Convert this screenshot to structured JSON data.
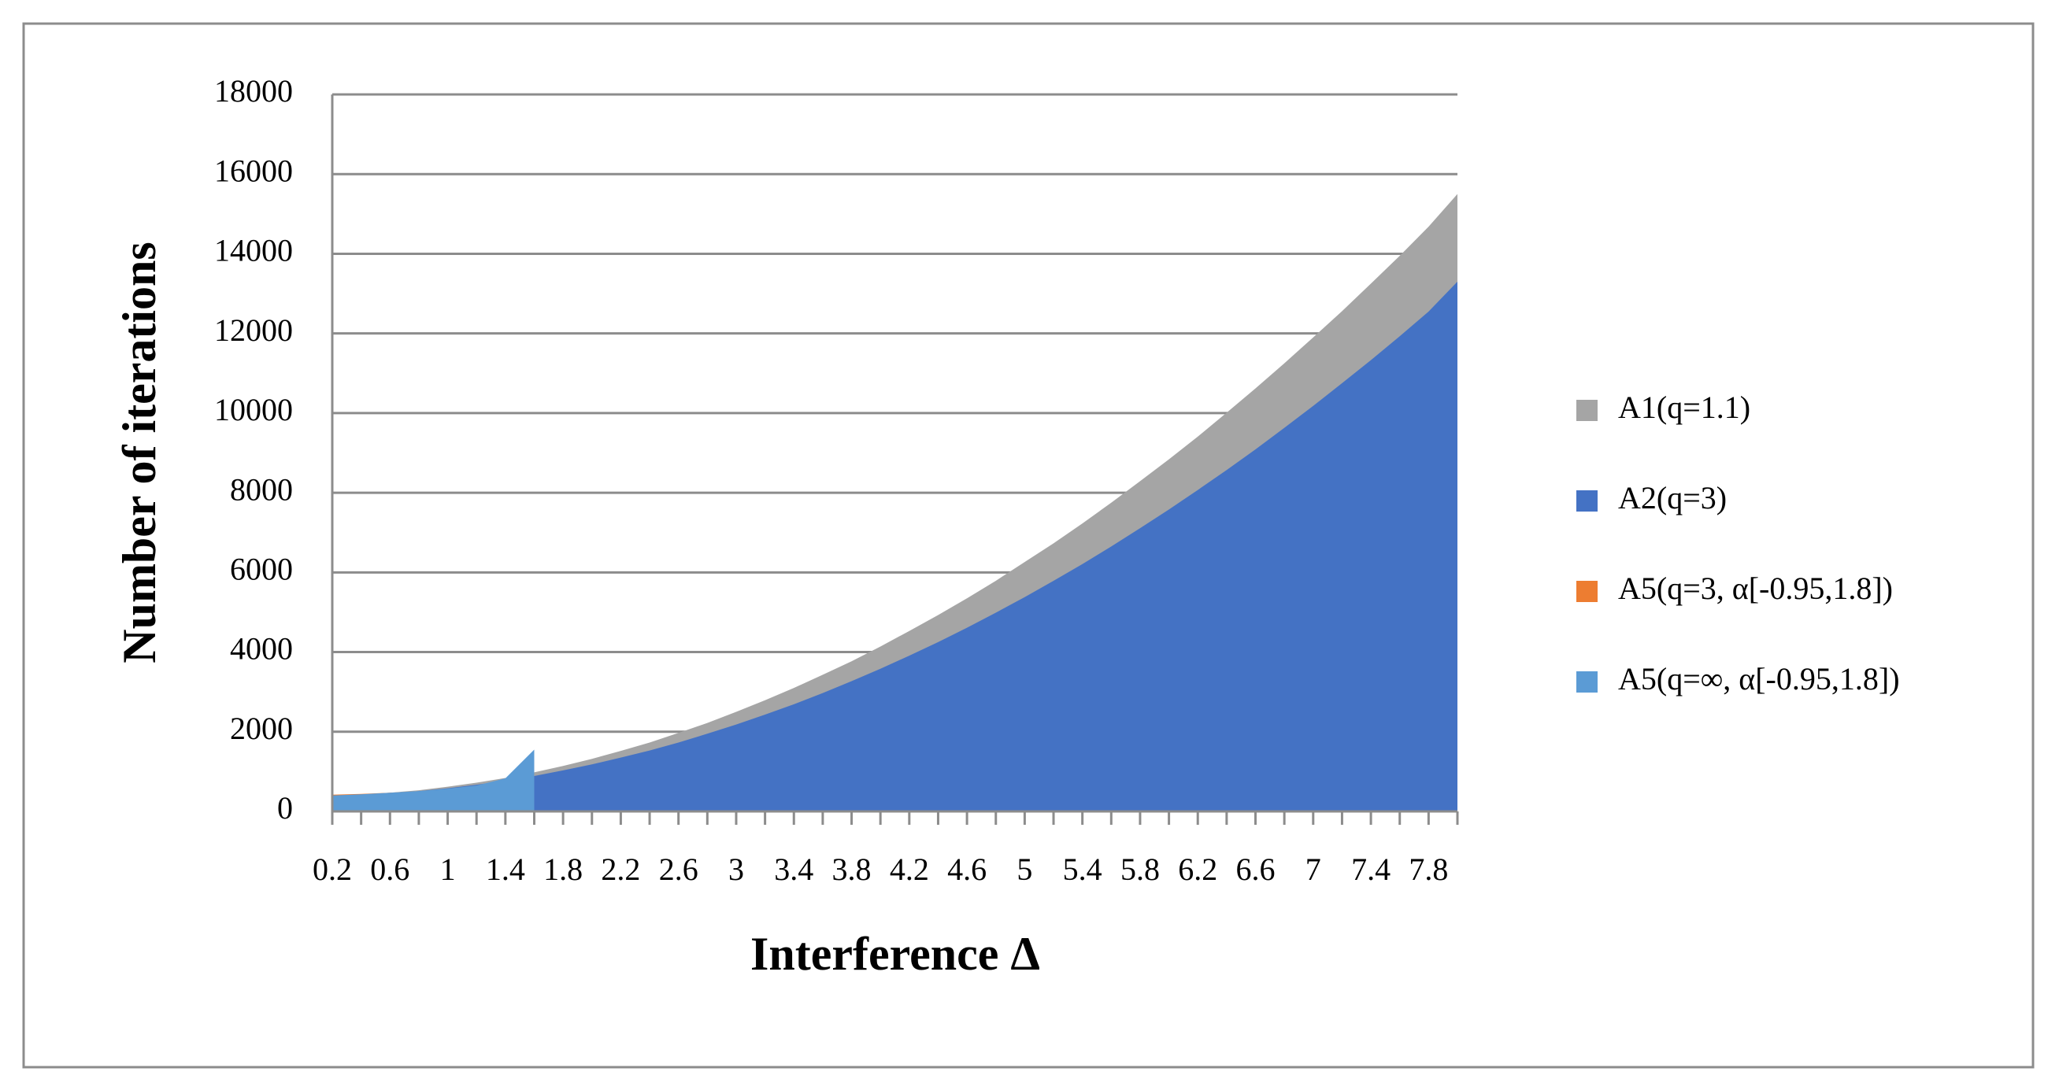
{
  "chart_data": {
    "type": "area",
    "y_axis_label": "Number of iterations",
    "x_axis_label": "Interference Δ",
    "categories": [
      0.2,
      null,
      0.6,
      null,
      1,
      null,
      1.4,
      null,
      1.8,
      null,
      2.2,
      null,
      2.6,
      null,
      3,
      null,
      3.4,
      null,
      3.8,
      null,
      4.2,
      null,
      4.6,
      null,
      5,
      null,
      5.4,
      null,
      5.8,
      null,
      6.2,
      null,
      6.6,
      null,
      7,
      null,
      7.4,
      null,
      7.8,
      null
    ],
    "series": [
      {
        "name": "A1(q=1.1)",
        "color": "#a5a5a5",
        "values": [
          390,
          420,
          470,
          530,
          620,
          720,
          840,
          980,
          1140,
          1320,
          1520,
          1730,
          1970,
          2220,
          2500,
          2790,
          3100,
          3430,
          3770,
          4140,
          4530,
          4930,
          5350,
          5790,
          6260,
          6730,
          7230,
          7750,
          8290,
          8840,
          9410,
          10010,
          10620,
          11250,
          11900,
          12560,
          13250,
          13950,
          14680,
          15500
        ]
      },
      {
        "name": "A2(q=3)",
        "color": "#4472c4",
        "values": [
          390,
          410,
          450,
          510,
          580,
          670,
          770,
          890,
          1030,
          1180,
          1350,
          1530,
          1730,
          1950,
          2180,
          2430,
          2690,
          2970,
          3270,
          3580,
          3910,
          4250,
          4610,
          4990,
          5380,
          5790,
          6210,
          6650,
          7110,
          7580,
          8070,
          8570,
          9090,
          9630,
          10180,
          10750,
          11330,
          11930,
          12550,
          13300
        ]
      },
      {
        "name": "A5(q=3, α[-0.95,1.8])",
        "color": "#ed7d31",
        "values": [
          420,
          440,
          470,
          500,
          550,
          620,
          750,
          1300,
          null,
          null,
          null,
          null,
          null,
          null,
          null,
          null,
          null,
          null,
          null,
          null,
          null,
          null,
          null,
          null,
          null,
          null,
          null,
          null,
          null,
          null,
          null,
          null,
          null,
          null,
          null,
          null,
          null,
          null,
          null,
          null
        ]
      },
      {
        "name": "A5(q=∞, α[-0.95,1.8])",
        "color": "#5b9bd5",
        "values": [
          400,
          430,
          470,
          510,
          570,
          650,
          830,
          1550,
          null,
          null,
          null,
          null,
          null,
          null,
          null,
          null,
          null,
          null,
          null,
          null,
          null,
          null,
          null,
          null,
          null,
          null,
          null,
          null,
          null,
          null,
          null,
          null,
          null,
          null,
          null,
          null,
          null,
          null,
          null,
          null
        ]
      }
    ],
    "ylim": [
      0,
      18000
    ],
    "yticks": [
      0,
      2000,
      4000,
      6000,
      8000,
      10000,
      12000,
      14000,
      16000,
      18000
    ],
    "grid": true,
    "legend": "right"
  }
}
